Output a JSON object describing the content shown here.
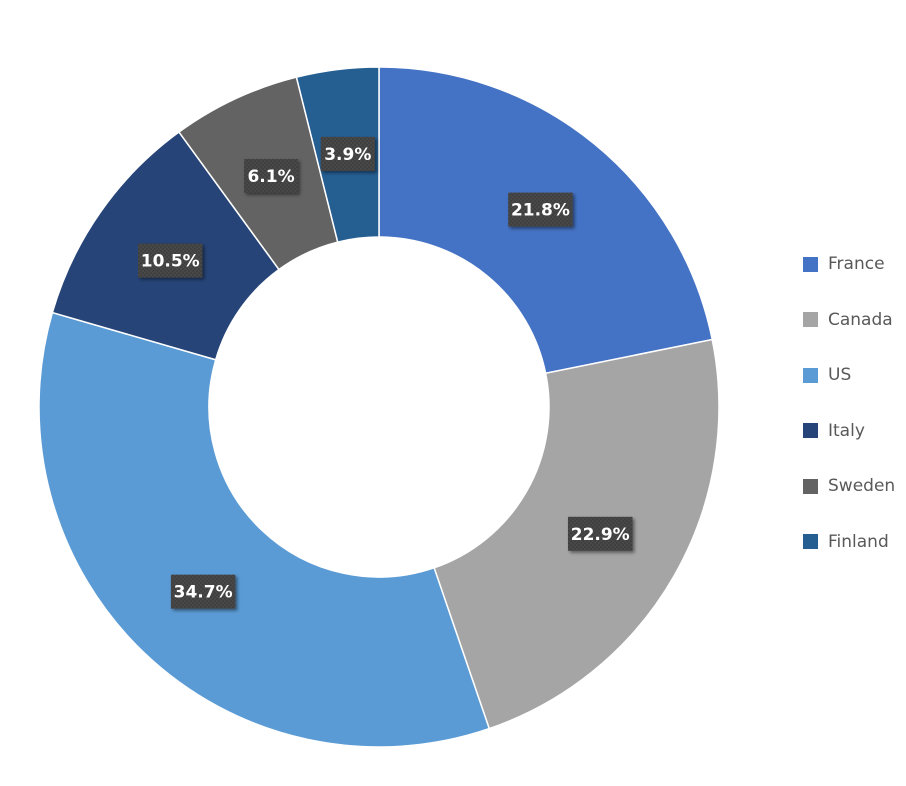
{
  "chart_data": {
    "type": "pie",
    "variant": "donut",
    "categories": [
      "France",
      "Canada",
      "US",
      "Italy",
      "Sweden",
      "Finland"
    ],
    "values": [
      21.8,
      22.9,
      34.7,
      10.5,
      6.1,
      3.9
    ],
    "value_labels": [
      "21.8%",
      "22.9%",
      "34.7%",
      "10.5%",
      "6.1%",
      "3.9%"
    ],
    "colors": [
      "#4472c4",
      "#a5a5a5",
      "#5b9bd5",
      "#264478",
      "#636363",
      "#255e91"
    ],
    "start_angle_deg": 0,
    "direction": "clockwise",
    "legend": "right",
    "label_box_color": "#404040",
    "label_text_color": "#ffffff"
  }
}
